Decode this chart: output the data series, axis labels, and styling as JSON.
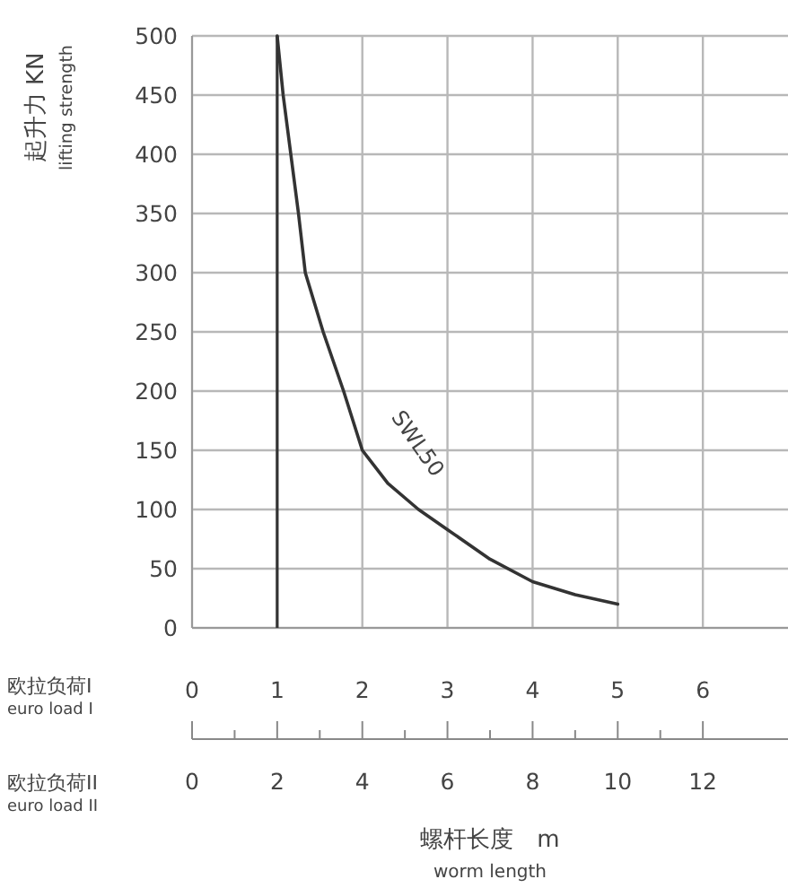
{
  "chart_data": {
    "type": "line",
    "ylabel": "起升力 KN\nlifting strength",
    "xlabel": "螺杆长度　m\nworm length",
    "x2label": "欧拉负荷II\neuro load II",
    "annotations": [
      "欧拉负荷I\neuro load I"
    ],
    "xlim": [
      0,
      7
    ],
    "xticks": [
      0,
      1,
      2,
      3,
      4,
      5,
      6
    ],
    "x2lim": [
      0,
      14
    ],
    "x2ticks": [
      0,
      2,
      4,
      6,
      8,
      10,
      12
    ],
    "ylim": [
      0,
      500
    ],
    "yticks": [
      0,
      50,
      100,
      150,
      200,
      250,
      300,
      350,
      400,
      450,
      500
    ],
    "grid": true,
    "line_style": "solid",
    "marker": "none",
    "ref_lines": [
      {
        "axis": "x",
        "value": 1,
        "color": "#333333"
      }
    ],
    "series": [
      {
        "name": "SWL50",
        "color": "#333333",
        "x": [
          1,
          1.07,
          1.16,
          1.25,
          1.33,
          1.54,
          1.78,
          2,
          2.3,
          2.66,
          3,
          3.5,
          4,
          4.5,
          5
        ],
        "values": [
          500,
          450,
          400,
          350,
          300,
          250,
          200,
          150,
          122,
          100,
          83,
          58,
          39,
          28,
          20
        ]
      }
    ]
  }
}
